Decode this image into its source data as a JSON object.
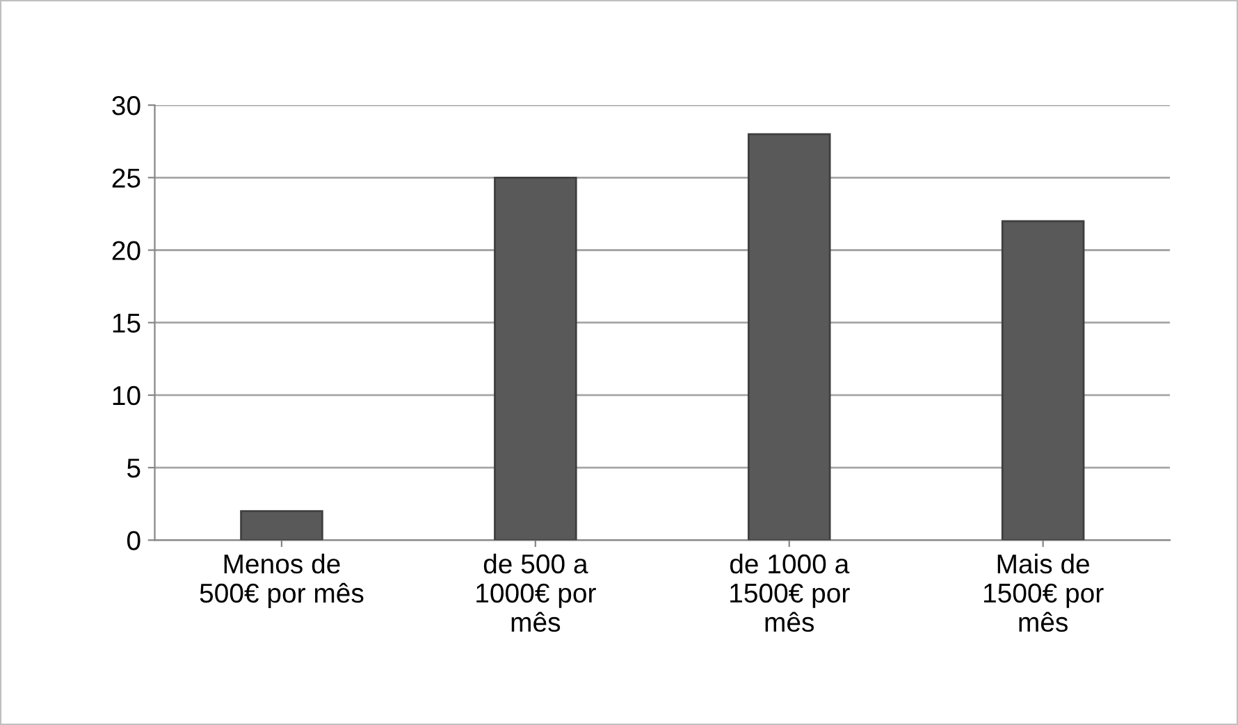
{
  "chart_data": {
    "type": "bar",
    "categories": [
      "Menos de\n500€ por mês",
      "de 500 a\n1000€ por\nmês",
      "de 1000 a\n1500€ por\nmês",
      "Mais de\n1500€ por\nmês"
    ],
    "values": [
      2,
      25,
      28,
      22
    ],
    "color": "#595959",
    "ylim": [
      0,
      30
    ],
    "yticks": [
      0,
      5,
      10,
      15,
      20,
      25,
      30
    ],
    "grid": "y"
  }
}
